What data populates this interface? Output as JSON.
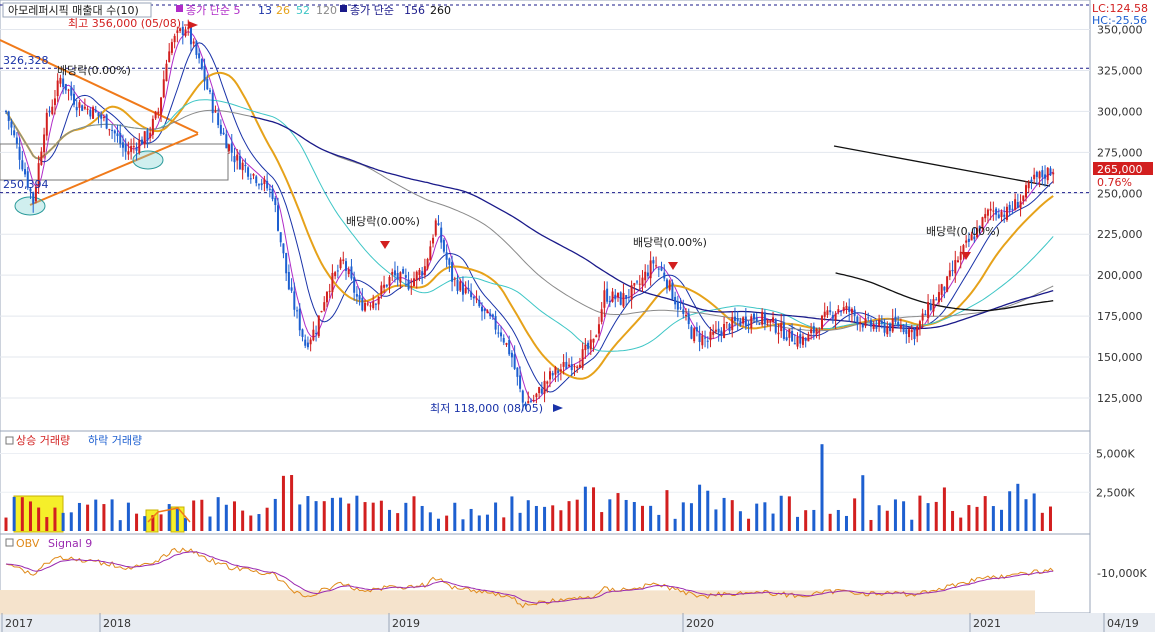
{
  "legend": {
    "title": "아모레퍼시픽 매출대 수(10)",
    "ma_label": "종가 단순 5",
    "ma_values": [
      "13",
      "26",
      "52",
      "120"
    ],
    "long_label": "종가 단순",
    "long_values": [
      "156",
      "260"
    ]
  },
  "badges": {
    "lc": "LC:124.58",
    "hc": "HC:-25.56",
    "price": "265,000",
    "pct": "0.76%"
  },
  "annotations": {
    "high": "최고 356,000 (05/08)",
    "low": "최저 118,000 (08/05)",
    "level_upper": "326,328",
    "level_lower": "250,394",
    "div1": "배당락(0.00%)",
    "div2": "배당락(0.00%)",
    "div3": "배당락(0.00%)",
    "div4": "배당락(0.00%)"
  },
  "volume_legend": {
    "up": "상승 거래량",
    "down": "하락 거래량"
  },
  "obv_legend": {
    "obv": "OBV",
    "signal": "Signal 9"
  },
  "colors": {
    "up": "#d21f1f",
    "down": "#1d5fd0",
    "ma5": "#b02cc8",
    "ma13": "#1a33a8",
    "ma26": "#e6a21a",
    "ma52": "#3ec6c6",
    "ma120": "#8a8a8a",
    "ma156": "#1a1a8a",
    "ma260": "#111111",
    "volume_zone": "#f5e3cc",
    "obv": "#e08a1a",
    "signal": "#9a2ab0"
  },
  "chart_data": [
    {
      "type": "candlestick",
      "title": "아모레퍼시픽 매출대 수(10)",
      "ylim": [
        110000,
        360000
      ],
      "y_ticks": [
        "125,000",
        "150,000",
        "175,000",
        "200,000",
        "225,000",
        "250,000",
        "275,000",
        "300,000",
        "325,000",
        "350,000"
      ],
      "x_ticks": [
        "2017",
        "2018",
        "2019",
        "2020",
        "2021",
        "04/19"
      ],
      "high": 356000,
      "low": 118000,
      "last_close": 265000,
      "change_pct": 0.76,
      "waypoints": [
        [
          0,
          300000
        ],
        [
          6,
          268000
        ],
        [
          10,
          245000
        ],
        [
          14,
          290000
        ],
        [
          20,
          320000
        ],
        [
          26,
          305000
        ],
        [
          32,
          300000
        ],
        [
          38,
          292000
        ],
        [
          44,
          275000
        ],
        [
          52,
          285000
        ],
        [
          56,
          300000
        ],
        [
          60,
          340000
        ],
        [
          66,
          352000
        ],
        [
          72,
          325000
        ],
        [
          78,
          292000
        ],
        [
          84,
          272000
        ],
        [
          92,
          260000
        ],
        [
          98,
          250000
        ],
        [
          104,
          192000
        ],
        [
          110,
          158000
        ],
        [
          114,
          168000
        ],
        [
          118,
          192000
        ],
        [
          124,
          208000
        ],
        [
          130,
          182000
        ],
        [
          136,
          186000
        ],
        [
          142,
          200000
        ],
        [
          148,
          195000
        ],
        [
          154,
          205000
        ],
        [
          158,
          232000
        ],
        [
          164,
          198000
        ],
        [
          170,
          188000
        ],
        [
          176,
          176000
        ],
        [
          182,
          165000
        ],
        [
          186,
          150000
        ],
        [
          190,
          122000
        ],
        [
          194,
          124000
        ],
        [
          200,
          138000
        ],
        [
          206,
          145000
        ],
        [
          210,
          148000
        ],
        [
          216,
          158000
        ],
        [
          220,
          188000
        ],
        [
          226,
          185000
        ],
        [
          232,
          192000
        ],
        [
          238,
          208000
        ],
        [
          242,
          200000
        ],
        [
          246,
          185000
        ],
        [
          252,
          165000
        ],
        [
          258,
          160000
        ],
        [
          264,
          168000
        ],
        [
          270,
          172000
        ],
        [
          276,
          175000
        ],
        [
          282,
          170000
        ],
        [
          288,
          163000
        ],
        [
          294,
          160000
        ],
        [
          300,
          172000
        ],
        [
          306,
          180000
        ],
        [
          310,
          178000
        ],
        [
          316,
          170000
        ],
        [
          322,
          168000
        ],
        [
          328,
          170000
        ],
        [
          334,
          165000
        ],
        [
          340,
          182000
        ],
        [
          346,
          195000
        ],
        [
          350,
          210000
        ],
        [
          356,
          225000
        ],
        [
          362,
          240000
        ],
        [
          368,
          238000
        ],
        [
          374,
          248000
        ],
        [
          378,
          258000
        ],
        [
          382,
          262000
        ],
        [
          385,
          265000
        ]
      ],
      "series": [
        {
          "name": "5",
          "window": 5
        },
        {
          "name": "13",
          "window": 13
        },
        {
          "name": "26",
          "window": 26
        },
        {
          "name": "52",
          "window": 52
        },
        {
          "name": "120",
          "window": 120
        },
        {
          "name": "156",
          "window": 156
        },
        {
          "name": "260",
          "window": 260
        }
      ]
    },
    {
      "type": "bar",
      "title": "상승 거래량 하락 거래량",
      "y_ticks": [
        "2,500K",
        "5,000K"
      ],
      "ylim": [
        0,
        6000
      ]
    },
    {
      "type": "line",
      "title": "OBV Signal 9",
      "y_ticks": [
        "-10,000K"
      ],
      "series": [
        {
          "name": "OBV"
        },
        {
          "name": "Signal 9"
        }
      ]
    }
  ]
}
